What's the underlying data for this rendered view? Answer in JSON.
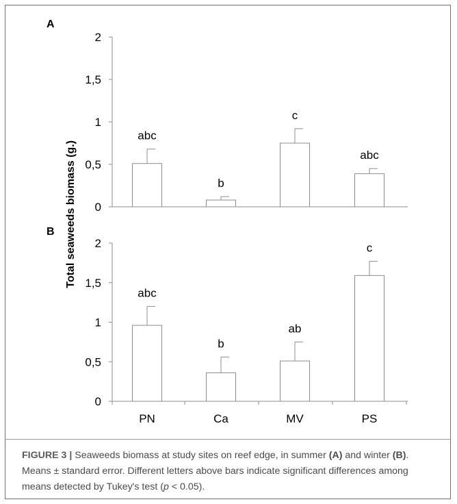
{
  "chart_data": [
    {
      "type": "bar",
      "panel_label": "A",
      "categories": [
        "PN",
        "Ca",
        "MV",
        "PS"
      ],
      "values": [
        0.51,
        0.08,
        0.75,
        0.39
      ],
      "errors": [
        0.17,
        0.04,
        0.17,
        0.06
      ],
      "letters": [
        "abc",
        "b",
        "c",
        "abc"
      ],
      "yticks": [
        "0",
        "0,5",
        "1",
        "1,5",
        "2"
      ],
      "ylim": [
        0,
        2
      ],
      "grid": false
    },
    {
      "type": "bar",
      "panel_label": "B",
      "categories": [
        "PN",
        "Ca",
        "MV",
        "PS"
      ],
      "values": [
        0.96,
        0.36,
        0.51,
        1.59
      ],
      "errors": [
        0.24,
        0.2,
        0.24,
        0.18
      ],
      "letters": [
        "abc",
        "b",
        "ab",
        "c"
      ],
      "yticks": [
        "0",
        "0,5",
        "1",
        "1,5",
        "2"
      ],
      "ylim": [
        0,
        2
      ],
      "grid": false
    }
  ],
  "ylabel": "Total seaweeds biomass (g.)",
  "caption": {
    "figure_label": "FIGURE 3 |",
    "text_1": " Seaweeds biomass at study sites on reef edge, in summer ",
    "label_a": "(A)",
    "text_2": " and winter ",
    "label_b": "(B)",
    "text_3": ". Means ± standard error. Different letters above bars indicate significant differences among means detected by Tukey's test (",
    "p_symbol": "p",
    "text_4": " < 0.05)."
  }
}
